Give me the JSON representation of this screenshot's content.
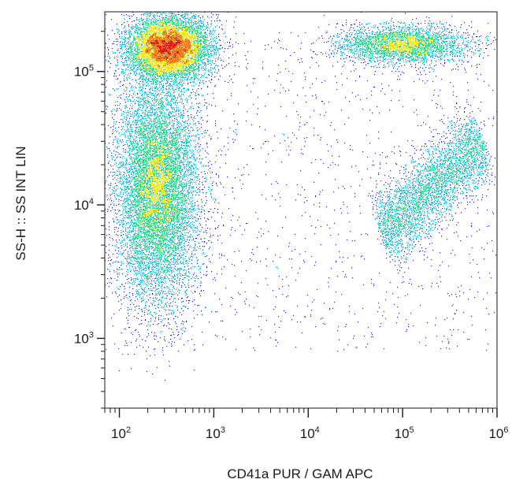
{
  "chart_data": {
    "type": "scatter",
    "subtype": "flow-cytometry density dot plot",
    "title": "",
    "xlabel": "CD41a PUR / GAM APC",
    "ylabel": "SS-H :: SS INT LIN",
    "x_scale": "log",
    "y_scale": "log",
    "xlim": [
      70,
      1000000
    ],
    "ylim": [
      300,
      280000
    ],
    "x_ticks": [
      {
        "value": 100,
        "base": "10",
        "exp": "2"
      },
      {
        "value": 1000,
        "base": "10",
        "exp": "3"
      },
      {
        "value": 10000,
        "base": "10",
        "exp": "4"
      },
      {
        "value": 100000,
        "base": "10",
        "exp": "5"
      },
      {
        "value": 1000000,
        "base": "10",
        "exp": "6"
      }
    ],
    "y_ticks": [
      {
        "value": 1000,
        "base": "10",
        "exp": "3"
      },
      {
        "value": 10000,
        "base": "10",
        "exp": "4"
      },
      {
        "value": 100000,
        "base": "10",
        "exp": "5"
      }
    ],
    "grid": false,
    "legend": "none",
    "color_scale": [
      "#1c2ad8",
      "#14b4e8",
      "#22d98a",
      "#f2e81c",
      "#f07d12",
      "#e21b1b"
    ],
    "populations": [
      {
        "center_x": 250,
        "center_y": 13000,
        "spread_x_decades": 0.22,
        "spread_y_decades": 0.42,
        "relative_density": 1.0
      },
      {
        "center_x": 330,
        "center_y": 150000,
        "spread_x_decades": 0.22,
        "spread_y_decades": 0.12,
        "relative_density": 0.75
      },
      {
        "center_x": 100000,
        "center_y": 160000,
        "spread_x_decades": 0.35,
        "spread_y_decades": 0.07,
        "relative_density": 0.3
      },
      {
        "x_from": 60000,
        "y_from": 6000,
        "x_to": 700000,
        "y_to": 30000,
        "spread_decades": 0.13,
        "relative_density": 0.35
      }
    ]
  }
}
